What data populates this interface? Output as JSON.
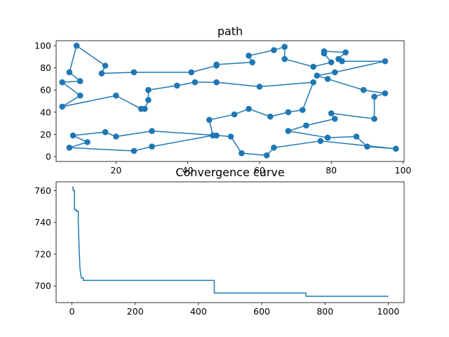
{
  "chart_data": [
    {
      "type": "line",
      "title": "path",
      "xlabel": "",
      "ylabel": "",
      "xlim": [
        3.3,
        100.3
      ],
      "ylim": [
        -4.5,
        104.5
      ],
      "xticks": [
        20,
        40,
        60,
        80,
        100
      ],
      "yticks": [
        0,
        20,
        40,
        60,
        80,
        100
      ],
      "markers": true,
      "route": [
        [
          9,
          100
        ],
        [
          17,
          82
        ],
        [
          16,
          75
        ],
        [
          25,
          76
        ],
        [
          41,
          76
        ],
        [
          48,
          82
        ],
        [
          48,
          83
        ],
        [
          58,
          85
        ],
        [
          57,
          91
        ],
        [
          64,
          96
        ],
        [
          67,
          99
        ],
        [
          67,
          88
        ],
        [
          75,
          81
        ],
        [
          80,
          85
        ],
        [
          78,
          93
        ],
        [
          78,
          95
        ],
        [
          84,
          94
        ],
        [
          82,
          88
        ],
        [
          83,
          86
        ],
        [
          95,
          86
        ],
        [
          81,
          76
        ],
        [
          76,
          73
        ],
        [
          79,
          70
        ],
        [
          89,
          60
        ],
        [
          95,
          57
        ],
        [
          92,
          54
        ],
        [
          92,
          34
        ],
        [
          80,
          39
        ],
        [
          81,
          34
        ],
        [
          73,
          28
        ],
        [
          68,
          23
        ],
        [
          79,
          17
        ],
        [
          87,
          18
        ],
        [
          90,
          9
        ],
        [
          98,
          7
        ],
        [
          77,
          14
        ],
        [
          64,
          8
        ],
        [
          62,
          1
        ],
        [
          55,
          3
        ],
        [
          52,
          18
        ],
        [
          48,
          19
        ],
        [
          30,
          23
        ],
        [
          20,
          18
        ],
        [
          17,
          22
        ],
        [
          8,
          19
        ],
        [
          12,
          13
        ],
        [
          7,
          8
        ],
        [
          25,
          5
        ],
        [
          30,
          9
        ],
        [
          47,
          19
        ],
        [
          46,
          33
        ],
        [
          53,
          38
        ],
        [
          57,
          43
        ],
        [
          63,
          36
        ],
        [
          68,
          40
        ],
        [
          72,
          42
        ],
        [
          75,
          67
        ],
        [
          60,
          63
        ],
        [
          48,
          67
        ],
        [
          42,
          67
        ],
        [
          37,
          64
        ],
        [
          29,
          60
        ],
        [
          29,
          51
        ],
        [
          28,
          43
        ],
        [
          27,
          43
        ],
        [
          20,
          55
        ],
        [
          5,
          45
        ],
        [
          10,
          55
        ],
        [
          5,
          67
        ],
        [
          10,
          68
        ],
        [
          7,
          76
        ],
        [
          9,
          100
        ]
      ]
    },
    {
      "type": "line",
      "title": "Convergence curve",
      "xlabel": "",
      "ylabel": "",
      "xlim": [
        -50,
        1050
      ],
      "ylim": [
        689.5,
        765.5
      ],
      "xticks": [
        0,
        200,
        400,
        600,
        800,
        1000
      ],
      "yticks": [
        700,
        720,
        740,
        760
      ],
      "markers": false,
      "x": [
        0,
        4,
        4,
        8,
        8,
        14,
        14,
        20,
        20,
        21,
        22,
        23,
        24,
        25,
        26,
        28,
        30,
        32,
        36,
        36,
        450,
        450,
        740,
        740,
        1000
      ],
      "y": [
        762,
        762,
        760,
        760,
        748,
        748,
        747,
        747,
        740,
        735,
        728,
        722,
        718,
        712,
        710,
        707,
        705,
        705,
        705,
        703.5,
        703.5,
        695.5,
        695.5,
        693.5,
        693.5
      ]
    }
  ]
}
